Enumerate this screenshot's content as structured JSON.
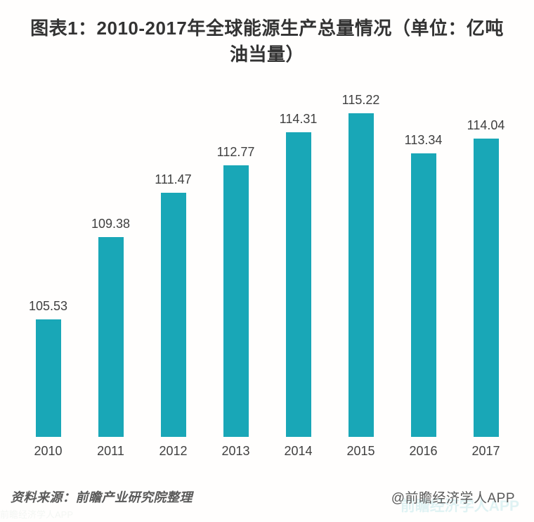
{
  "header": {
    "title": "图表1：2010-2017年全球能源生产总量情况（单位：亿吨油当量）"
  },
  "chart_data": {
    "type": "bar",
    "title": "图表1：2010-2017年全球能源生产总量情况（单位：亿吨油当量）",
    "categories": [
      "2010",
      "2011",
      "2012",
      "2013",
      "2014",
      "2015",
      "2016",
      "2017"
    ],
    "values": [
      105.53,
      109.38,
      111.47,
      112.77,
      114.31,
      115.22,
      113.34,
      114.04
    ],
    "unit": "亿吨油当量",
    "xlabel": "",
    "ylabel": "",
    "ylim": [
      100,
      117
    ],
    "grid": false,
    "legend": false,
    "data_labels": true,
    "bar_color": "#19a7b7",
    "label_color": "#3f3f3f"
  },
  "footer": {
    "source": "资料来源：前瞻产业研究院整理",
    "credit": "@前瞻经济学人APP",
    "watermark": "前瞻经济学人APP"
  }
}
